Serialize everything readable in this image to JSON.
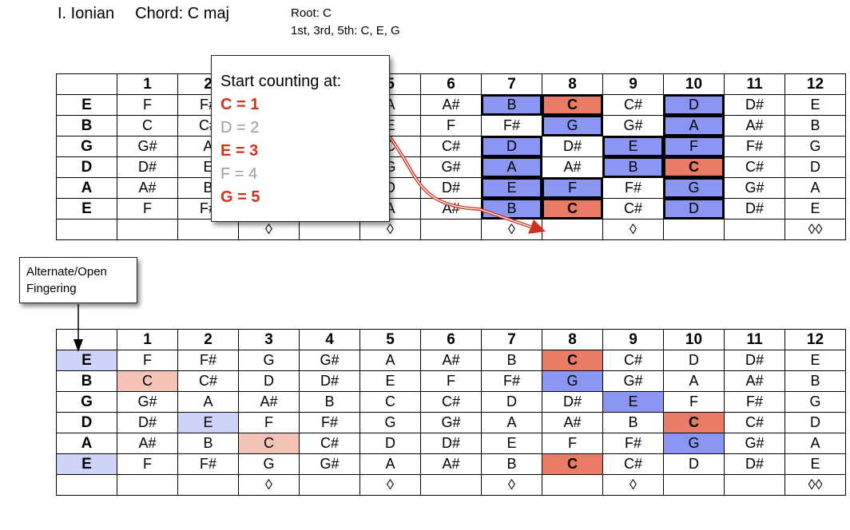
{
  "header": {
    "mode": "I. Ionian",
    "chord": "Chord: C maj",
    "root": "Root: C",
    "tones": "1st, 3rd, 5th: C, E, G"
  },
  "popup": {
    "heading": "Start counting at:",
    "items": [
      "C = 1",
      "D = 2",
      "E = 3",
      "F = 4",
      "G = 5"
    ]
  },
  "tooltip": "Alternate/Open Fingering",
  "frets": [
    "1",
    "2",
    "3",
    "4",
    "5",
    "6",
    "7",
    "8",
    "9",
    "10",
    "11",
    "12"
  ],
  "strings": [
    {
      "name": "E",
      "notes": [
        "F",
        "F#",
        "G",
        "G#",
        "A",
        "A#",
        "B",
        "C",
        "C#",
        "D",
        "D#",
        "E"
      ]
    },
    {
      "name": "B",
      "notes": [
        "C",
        "C#",
        "D",
        "D#",
        "E",
        "F",
        "F#",
        "G",
        "G#",
        "A",
        "A#",
        "B"
      ]
    },
    {
      "name": "G",
      "notes": [
        "G#",
        "A",
        "A#",
        "B",
        "C",
        "C#",
        "D",
        "D#",
        "E",
        "F",
        "F#",
        "G"
      ]
    },
    {
      "name": "D",
      "notes": [
        "D#",
        "E",
        "F",
        "F#",
        "G",
        "G#",
        "A",
        "A#",
        "B",
        "C",
        "C#",
        "D"
      ]
    },
    {
      "name": "A",
      "notes": [
        "A#",
        "B",
        "C",
        "C#",
        "D",
        "D#",
        "E",
        "F",
        "F#",
        "G",
        "G#",
        "A"
      ]
    },
    {
      "name": "E",
      "notes": [
        "F",
        "F#",
        "G",
        "G#",
        "A",
        "A#",
        "B",
        "C",
        "C#",
        "D",
        "D#",
        "E"
      ]
    }
  ],
  "markers": [
    "",
    "",
    "◊",
    "",
    "◊",
    "",
    "◊",
    "",
    "◊",
    "",
    "",
    "◊◊"
  ],
  "colors": {
    "blue": "#8b95f2",
    "root": "#ea7b66",
    "light_blue": "#ced3fa",
    "light_red": "#f4c3b7",
    "arrow": "#d0321e"
  },
  "diagram1": {
    "blue": [
      [
        0,
        7
      ],
      [
        0,
        10
      ],
      [
        1,
        8
      ],
      [
        1,
        10
      ],
      [
        2,
        7
      ],
      [
        2,
        9
      ],
      [
        2,
        10
      ],
      [
        3,
        7
      ],
      [
        3,
        9
      ],
      [
        4,
        7
      ],
      [
        4,
        8
      ],
      [
        4,
        10
      ],
      [
        5,
        7
      ],
      [
        5,
        10
      ]
    ],
    "root": [
      [
        0,
        8
      ],
      [
        3,
        10
      ],
      [
        5,
        8
      ]
    ]
  },
  "diagram2": {
    "blue": [
      [
        1,
        8
      ],
      [
        2,
        9
      ],
      [
        4,
        10
      ]
    ],
    "root": [
      [
        0,
        8
      ],
      [
        3,
        10
      ],
      [
        5,
        8
      ]
    ],
    "light_blue": [
      [
        0,
        0
      ],
      [
        3,
        2
      ],
      [
        5,
        0
      ]
    ],
    "light_red": [
      [
        1,
        1
      ],
      [
        4,
        3
      ]
    ]
  }
}
